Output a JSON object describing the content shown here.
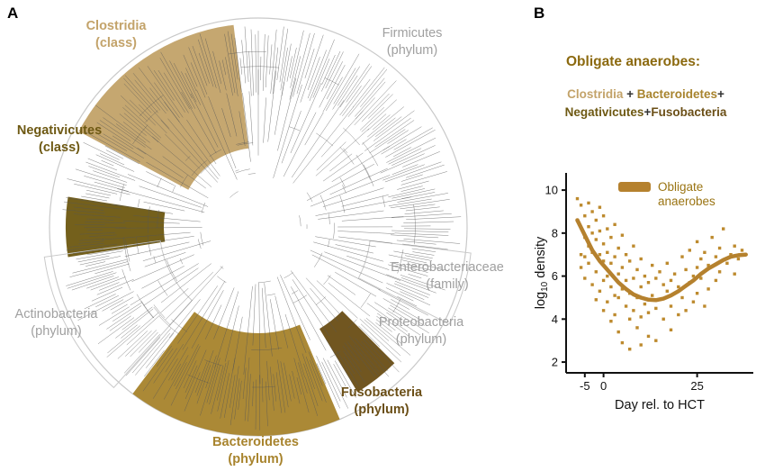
{
  "panel_a": {
    "label": "A",
    "clades": [
      {
        "name": "Clostridia",
        "rank": "(class)",
        "color": "#c3a36a",
        "highlighted": true
      },
      {
        "name": "Firmicutes",
        "rank": "(phylum)",
        "color": "#a0a0a0",
        "highlighted": false
      },
      {
        "name": "Negativicutes",
        "rank": "(class)",
        "color": "#6e5913",
        "highlighted": true
      },
      {
        "name": "Actinobacteria",
        "rank": "(phylum)",
        "color": "#a0a0a0",
        "highlighted": false
      },
      {
        "name": "Bacteroidetes",
        "rank": "(phylum)",
        "color": "#a8842e",
        "highlighted": true
      },
      {
        "name": "Fusobacteria",
        "rank": "(phylum)",
        "color": "#6b4f17",
        "highlighted": true
      },
      {
        "name": "Enterobacteriaceae",
        "rank": "(family)",
        "color": "#a0a0a0",
        "highlighted": false
      },
      {
        "name": "Proteobacteria",
        "rank": "(phylum)",
        "color": "#a0a0a0",
        "highlighted": false
      }
    ]
  },
  "panel_b": {
    "label": "B",
    "heading": "Obligate anaerobes:",
    "heading_color": "#8c6a10",
    "composition": [
      [
        {
          "text": "Clostridia",
          "color": "#c3a36a"
        },
        {
          "text": " + ",
          "color": "#333333"
        },
        {
          "text": "Bacteroidetes",
          "color": "#a8842e"
        },
        {
          "text": "+",
          "color": "#333333"
        }
      ],
      [
        {
          "text": "Negativicutes",
          "color": "#6e5913"
        },
        {
          "text": "+",
          "color": "#333333"
        },
        {
          "text": "Fusobacteria",
          "color": "#6b4f17"
        }
      ]
    ]
  },
  "chart_data": {
    "type": "scatter",
    "title": "",
    "xlabel": "Day rel. to HCT",
    "ylabel": "log10 density",
    "xlim": [
      -10,
      40
    ],
    "ylim": [
      1.5,
      10.8
    ],
    "xticks": [
      -5,
      0,
      25
    ],
    "yticks": [
      2,
      4,
      6,
      8,
      10
    ],
    "grid": false,
    "legend": {
      "label": "Obligate anaerobes",
      "position": "top-inside",
      "color": "#9a7413"
    },
    "point_color": "#bd8a2e",
    "line_color": "#b5812e",
    "points": [
      [
        -7,
        8.6
      ],
      [
        -7,
        9.6
      ],
      [
        -6,
        9.3
      ],
      [
        -6,
        7.0
      ],
      [
        -6,
        6.4
      ],
      [
        -5,
        8.8
      ],
      [
        -5,
        7.8
      ],
      [
        -5,
        6.9
      ],
      [
        -5,
        5.9
      ],
      [
        -4,
        9.4
      ],
      [
        -4,
        8.3
      ],
      [
        -4,
        7.4
      ],
      [
        -4,
        6.6
      ],
      [
        -3,
        9.0
      ],
      [
        -3,
        8.0
      ],
      [
        -3,
        7.1
      ],
      [
        -3,
        5.6
      ],
      [
        -2,
        8.6
      ],
      [
        -2,
        7.7
      ],
      [
        -2,
        6.2
      ],
      [
        -2,
        4.9
      ],
      [
        -1,
        9.2
      ],
      [
        -1,
        8.1
      ],
      [
        -1,
        7.0
      ],
      [
        -1,
        5.3
      ],
      [
        0,
        8.8
      ],
      [
        0,
        7.5
      ],
      [
        0,
        6.7
      ],
      [
        0,
        5.8
      ],
      [
        0,
        4.4
      ],
      [
        1,
        8.2
      ],
      [
        1,
        7.1
      ],
      [
        1,
        6.0
      ],
      [
        1,
        4.8
      ],
      [
        2,
        7.8
      ],
      [
        2,
        6.6
      ],
      [
        2,
        5.5
      ],
      [
        2,
        3.9
      ],
      [
        3,
        8.4
      ],
      [
        3,
        6.9
      ],
      [
        3,
        5.1
      ],
      [
        3,
        4.2
      ],
      [
        4,
        7.3
      ],
      [
        4,
        6.1
      ],
      [
        4,
        5.0
      ],
      [
        4,
        3.4
      ],
      [
        5,
        7.9
      ],
      [
        5,
        6.4
      ],
      [
        5,
        5.4
      ],
      [
        5,
        2.9
      ],
      [
        6,
        7.0
      ],
      [
        6,
        5.8
      ],
      [
        6,
        4.6
      ],
      [
        7,
        6.7
      ],
      [
        7,
        5.2
      ],
      [
        7,
        4.0
      ],
      [
        7,
        2.6
      ],
      [
        8,
        7.4
      ],
      [
        8,
        5.9
      ],
      [
        8,
        4.4
      ],
      [
        9,
        6.3
      ],
      [
        9,
        5.0
      ],
      [
        9,
        3.6
      ],
      [
        10,
        6.8
      ],
      [
        10,
        5.5
      ],
      [
        10,
        4.1
      ],
      [
        10,
        2.8
      ],
      [
        11,
        6.0
      ],
      [
        11,
        4.7
      ],
      [
        12,
        5.7
      ],
      [
        12,
        4.3
      ],
      [
        12,
        3.2
      ],
      [
        13,
        6.5
      ],
      [
        13,
        5.1
      ],
      [
        14,
        5.9
      ],
      [
        14,
        4.5
      ],
      [
        14,
        3.0
      ],
      [
        15,
        6.2
      ],
      [
        15,
        4.9
      ],
      [
        16,
        5.6
      ],
      [
        16,
        4.0
      ],
      [
        17,
        6.6
      ],
      [
        17,
        5.3
      ],
      [
        18,
        5.8
      ],
      [
        18,
        4.6
      ],
      [
        18,
        3.5
      ],
      [
        19,
        6.1
      ],
      [
        20,
        5.5
      ],
      [
        20,
        4.2
      ],
      [
        21,
        6.9
      ],
      [
        21,
        5.0
      ],
      [
        22,
        6.3
      ],
      [
        22,
        4.4
      ],
      [
        23,
        7.2
      ],
      [
        23,
        5.7
      ],
      [
        24,
        6.0
      ],
      [
        24,
        4.8
      ],
      [
        25,
        7.6
      ],
      [
        25,
        6.4
      ],
      [
        25,
        5.2
      ],
      [
        26,
        6.8
      ],
      [
        26,
        5.9
      ],
      [
        27,
        7.1
      ],
      [
        27,
        4.6
      ],
      [
        28,
        6.5
      ],
      [
        28,
        5.4
      ],
      [
        29,
        7.8
      ],
      [
        30,
        6.9
      ],
      [
        30,
        5.8
      ],
      [
        31,
        7.3
      ],
      [
        31,
        6.2
      ],
      [
        32,
        8.2
      ],
      [
        33,
        6.6
      ],
      [
        34,
        7.0
      ],
      [
        35,
        7.4
      ],
      [
        35,
        6.1
      ],
      [
        36,
        6.8
      ],
      [
        37,
        7.2
      ]
    ],
    "smooth_line": [
      [
        -7,
        8.6
      ],
      [
        -5,
        7.9
      ],
      [
        -3,
        7.2
      ],
      [
        -1,
        6.7
      ],
      [
        0,
        6.5
      ],
      [
        2,
        6.1
      ],
      [
        4,
        5.7
      ],
      [
        6,
        5.4
      ],
      [
        8,
        5.15
      ],
      [
        10,
        5.0
      ],
      [
        12,
        4.9
      ],
      [
        14,
        4.88
      ],
      [
        16,
        4.95
      ],
      [
        18,
        5.1
      ],
      [
        20,
        5.3
      ],
      [
        22,
        5.55
      ],
      [
        24,
        5.8
      ],
      [
        26,
        6.1
      ],
      [
        28,
        6.35
      ],
      [
        30,
        6.55
      ],
      [
        32,
        6.75
      ],
      [
        34,
        6.9
      ],
      [
        36,
        6.97
      ],
      [
        38,
        7.0
      ]
    ]
  }
}
